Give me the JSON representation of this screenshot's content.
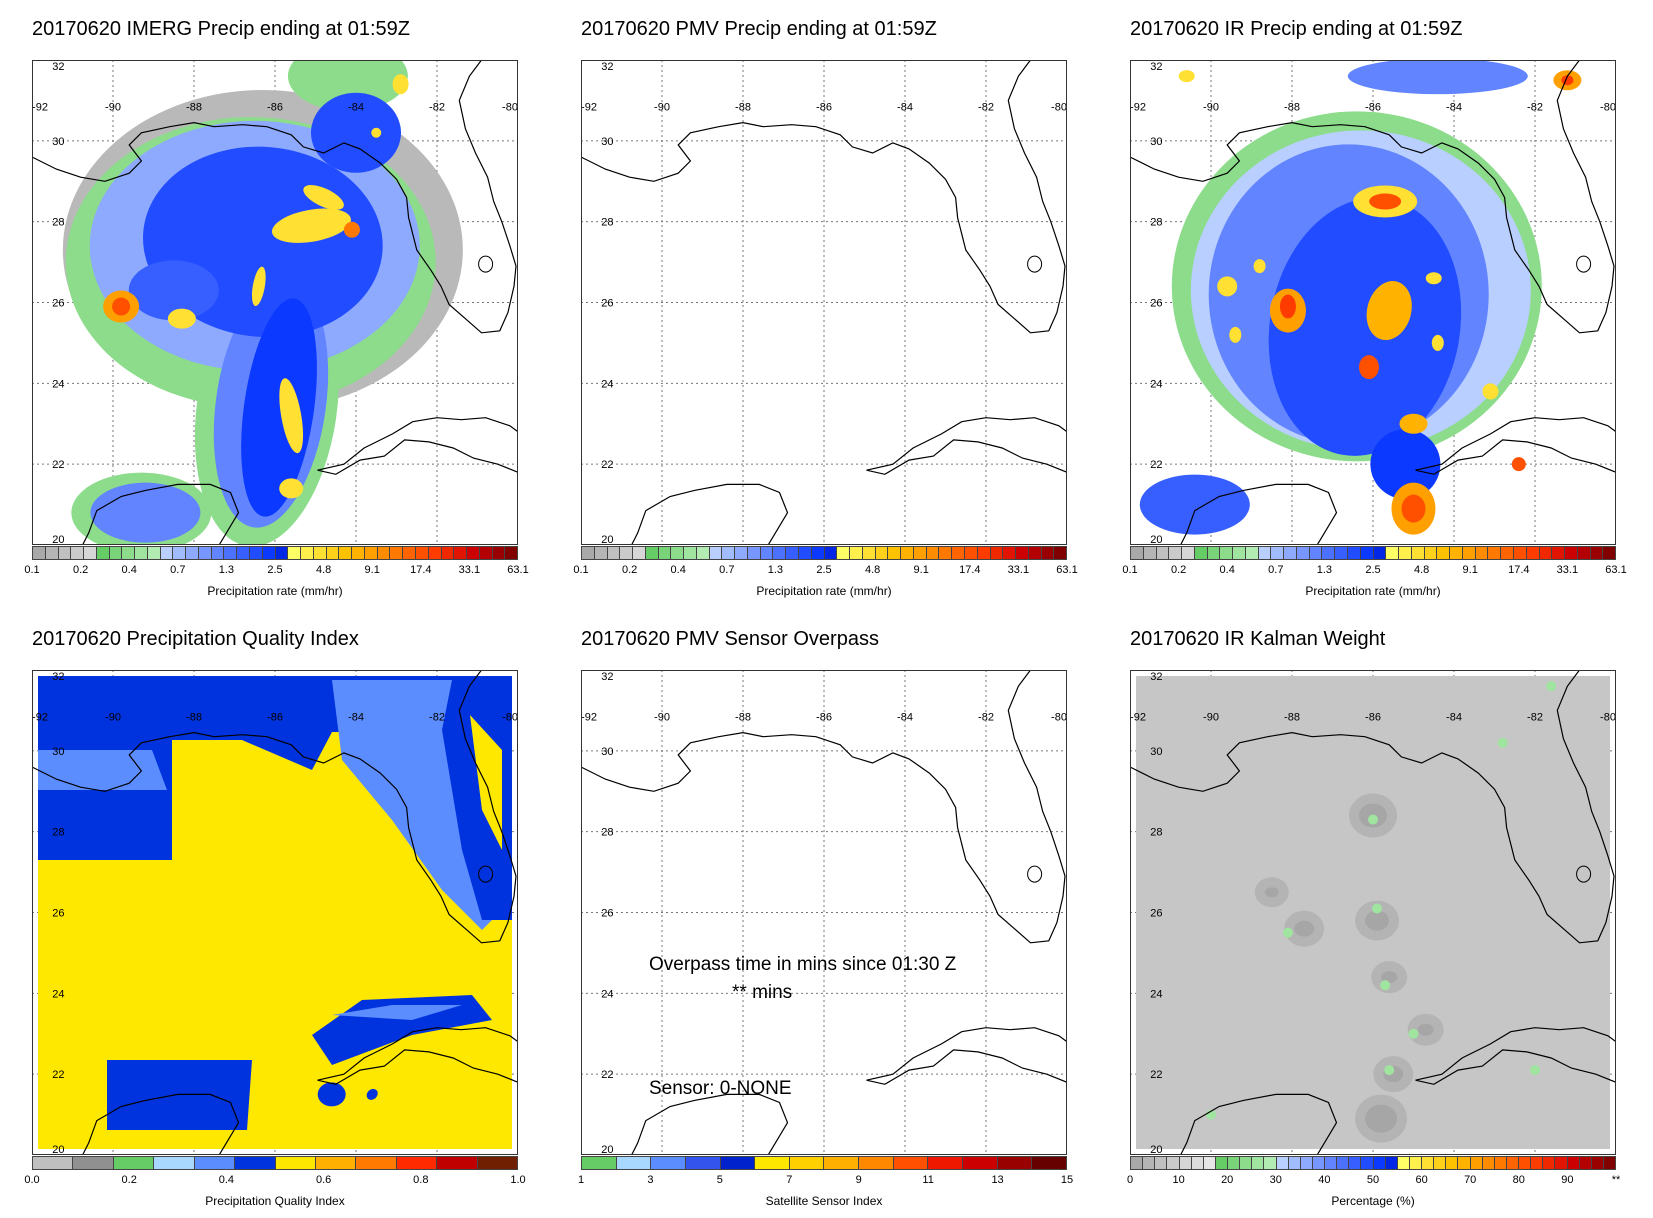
{
  "panels": [
    {
      "title": "20170620 IMERG Precip ending at 01:59Z",
      "kind": "precip",
      "field": "imerg"
    },
    {
      "title": "20170620 PMV Precip ending at 01:59Z",
      "kind": "precip",
      "field": "none"
    },
    {
      "title": "20170620 IR Precip ending at 01:59Z",
      "kind": "precip",
      "field": "ir"
    },
    {
      "title": "20170620 Precipitation Quality Index",
      "kind": "pqi",
      "field": "pqi"
    },
    {
      "title": "20170620 PMV Sensor Overpass",
      "kind": "sensor",
      "field": "none"
    },
    {
      "title": "20170620 IR Kalman Weight",
      "kind": "kalman",
      "field": "kalman"
    }
  ],
  "map": {
    "lon_labels": [
      "-92",
      "-90",
      "-88",
      "-86",
      "-84",
      "-82",
      "-80"
    ],
    "lat_labels": [
      "32",
      "30",
      "28",
      "26",
      "24",
      "22",
      "20"
    ]
  },
  "colorbars": {
    "precip": {
      "colors": [
        "#a9a9a9",
        "#b5b5b5",
        "#c0c0c0",
        "#cbcbcb",
        "#d6d6d6",
        "#66cc66",
        "#79d479",
        "#8cdc8c",
        "#9fe49f",
        "#b2ecb2",
        "#b8cfff",
        "#a2bdff",
        "#8daaff",
        "#7797ff",
        "#6284ff",
        "#4c71ff",
        "#375fff",
        "#214cff",
        "#0c39ff",
        "#0026e6",
        "#ffff66",
        "#fff04d",
        "#ffe033",
        "#ffd11a",
        "#ffc200",
        "#ffb300",
        "#ffa000",
        "#ff8c00",
        "#ff7800",
        "#ff6400",
        "#ff5000",
        "#ff3c00",
        "#f02800",
        "#e01400",
        "#cc0000",
        "#b30000",
        "#990000",
        "#800000"
      ],
      "labels": [
        "0.1",
        "0.2",
        "0.4",
        "0.7",
        "1.3",
        "2.5",
        "4.8",
        "9.1",
        "17.4",
        "33.1",
        "63.1"
      ],
      "unit": "Precipitation rate (mm/hr)"
    },
    "pqi": {
      "colors": [
        "#c0c0c0",
        "#909090",
        "#66cc66",
        "#a8d8ff",
        "#5c8dff",
        "#0033dd",
        "#ffe800",
        "#ffb000",
        "#ff7a00",
        "#ff2a00",
        "#c00000",
        "#702000"
      ],
      "labels": [
        "0.0",
        "0.2",
        "0.4",
        "0.6",
        "0.8",
        "1.0"
      ],
      "unit": "Precipitation Quality Index"
    },
    "sensor": {
      "colors": [
        "#66cc66",
        "#a8d8ff",
        "#5c8dff",
        "#3355ee",
        "#0022cc",
        "#ffe800",
        "#ffd000",
        "#ffb000",
        "#ff8800",
        "#ff5000",
        "#ee1800",
        "#cc0000",
        "#990000",
        "#660000"
      ],
      "labels": [
        "1",
        "3",
        "5",
        "7",
        "9",
        "11",
        "13",
        "15"
      ],
      "unit": "Satellite Sensor Index"
    },
    "kalman": {
      "colors": [
        "#a9a9a9",
        "#b5b5b5",
        "#c0c0c0",
        "#cbcbcb",
        "#d6d6d6",
        "#dddddd",
        "#e6e6e6",
        "#66cc66",
        "#79d479",
        "#8cdc8c",
        "#9fe49f",
        "#b2ecb2",
        "#b8cfff",
        "#a2bdff",
        "#8daaff",
        "#7797ff",
        "#6284ff",
        "#4c71ff",
        "#375fff",
        "#214cff",
        "#0c39ff",
        "#0026e6",
        "#ffff66",
        "#fff04d",
        "#ffe033",
        "#ffd11a",
        "#ffc200",
        "#ffb300",
        "#ffa000",
        "#ff8c00",
        "#ff7800",
        "#ff6400",
        "#ff5000",
        "#ff3c00",
        "#f02800",
        "#e01400",
        "#cc0000",
        "#b30000",
        "#990000",
        "#800000"
      ],
      "labels": [
        "0",
        "10",
        "20",
        "30",
        "40",
        "50",
        "60",
        "70",
        "80",
        "90",
        "**"
      ],
      "unit": "Percentage (%)"
    }
  },
  "overpass": {
    "line1": "Overpass time in mins since 01:30 Z",
    "line2": "** mins",
    "line3": "Sensor:   0-NONE"
  }
}
